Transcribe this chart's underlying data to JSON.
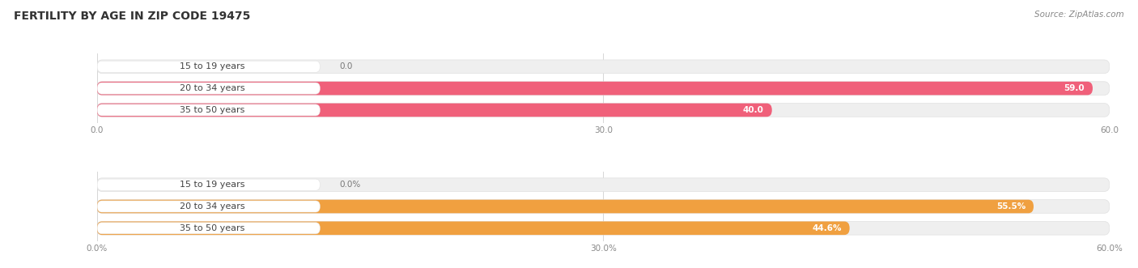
{
  "title": "FERTILITY BY AGE IN ZIP CODE 19475",
  "source": "Source: ZipAtlas.com",
  "top_chart": {
    "categories": [
      "15 to 19 years",
      "20 to 34 years",
      "35 to 50 years"
    ],
    "values": [
      0.0,
      59.0,
      40.0
    ],
    "bar_color": "#F0607A",
    "bar_color_light": "#F4A0B0",
    "track_color": "#EFEFEF",
    "xlim": [
      0,
      60
    ],
    "xticks": [
      0.0,
      30.0,
      60.0
    ],
    "tick_labels": [
      "0.0",
      "30.0",
      "60.0"
    ]
  },
  "bottom_chart": {
    "categories": [
      "15 to 19 years",
      "20 to 34 years",
      "35 to 50 years"
    ],
    "values": [
      0.0,
      55.5,
      44.6
    ],
    "bar_color": "#F0A040",
    "bar_color_light": "#F5C890",
    "track_color": "#EFEFEF",
    "xlim": [
      0,
      60
    ],
    "xticks": [
      0.0,
      30.0,
      60.0
    ],
    "tick_labels": [
      "0.0%",
      "30.0%",
      "60.0%"
    ]
  },
  "title_fontsize": 10,
  "source_fontsize": 7.5,
  "label_fontsize": 8,
  "value_fontsize": 7.5,
  "tick_fontsize": 7.5,
  "background_color": "#FFFFFF",
  "label_text_color": "#444444",
  "tick_color": "#888888",
  "grid_color": "#CCCCCC",
  "label_bg_color": "#FFFFFF"
}
